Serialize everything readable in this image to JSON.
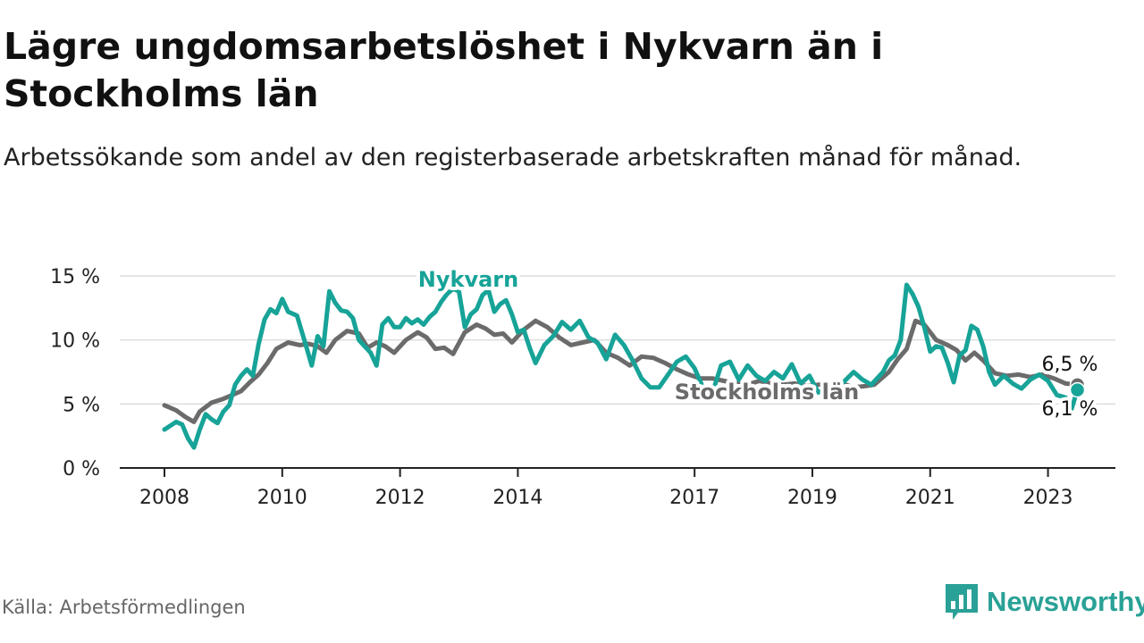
{
  "title": "Lägre ungdomsarbetslöshet i Nykvarn än i Stockholms län",
  "subtitle": "Arbetssökande som andel av den registerbaserade arbetskraften månad för månad.",
  "source": "Källa: Arbetsförmedlingen",
  "brand": {
    "name": "Newsworthy",
    "icon": "bar-chart-logo-icon"
  },
  "colors": {
    "nykvarn": "#17a398",
    "stockholm": "#6b6b6b",
    "grid": "#dddddd",
    "axis": "#222222"
  },
  "chart_data": {
    "type": "line",
    "title": "Lägre ungdomsarbetslöshet i Nykvarn än i Stockholms län",
    "ylim": [
      0,
      15
    ],
    "xlim": [
      2008,
      2023.75
    ],
    "y_ticks": [
      {
        "value": 0,
        "label": "0 %"
      },
      {
        "value": 5,
        "label": "5 %"
      },
      {
        "value": 10,
        "label": "10 %"
      },
      {
        "value": 15,
        "label": "15 %"
      }
    ],
    "x_ticks": [
      {
        "value": 2008,
        "label": "2008"
      },
      {
        "value": 2010,
        "label": "2010"
      },
      {
        "value": 2012,
        "label": "2012"
      },
      {
        "value": 2014,
        "label": "2014"
      },
      {
        "value": 2017,
        "label": "2017"
      },
      {
        "value": 2019,
        "label": "2019"
      },
      {
        "value": 2021,
        "label": "2021"
      },
      {
        "value": 2023,
        "label": "2023"
      }
    ],
    "grid": true,
    "series": [
      {
        "name": "Stockholms län",
        "label": "Stockholms län",
        "end_label": "6,5 %",
        "color": "#6b6b6b",
        "x": [
          2008.0,
          2008.2,
          2008.35,
          2008.5,
          2008.6,
          2008.8,
          2009.0,
          2009.15,
          2009.3,
          2009.45,
          2009.6,
          2009.75,
          2009.9,
          2010.1,
          2010.3,
          2010.45,
          2010.6,
          2010.75,
          2010.9,
          2011.1,
          2011.3,
          2011.45,
          2011.6,
          2011.75,
          2011.9,
          2012.1,
          2012.3,
          2012.45,
          2012.6,
          2012.75,
          2012.9,
          2013.1,
          2013.3,
          2013.45,
          2013.6,
          2013.75,
          2013.9,
          2014.1,
          2014.3,
          2014.5,
          2014.7,
          2014.9,
          2015.1,
          2015.3,
          2015.5,
          2015.7,
          2015.9,
          2016.1,
          2016.3,
          2016.5,
          2016.7,
          2016.9,
          2017.1,
          2017.3,
          2017.5,
          2017.7,
          2017.9,
          2018.1,
          2018.3,
          2018.5,
          2018.7,
          2018.9,
          2019.1,
          2019.3,
          2019.5,
          2019.7,
          2019.9,
          2020.05,
          2020.15,
          2020.3,
          2020.45,
          2020.6,
          2020.75,
          2020.9,
          2021.1,
          2021.3,
          2021.45,
          2021.6,
          2021.75,
          2021.9,
          2022.1,
          2022.3,
          2022.5,
          2022.7,
          2022.9,
          2023.1,
          2023.3,
          2023.5
        ],
        "y": [
          4.9,
          4.5,
          4.0,
          3.6,
          4.4,
          5.1,
          5.4,
          5.7,
          6.0,
          6.7,
          7.3,
          8.2,
          9.3,
          9.8,
          9.6,
          9.7,
          9.5,
          9.0,
          10.0,
          10.7,
          10.5,
          9.4,
          9.8,
          9.5,
          9.0,
          10.0,
          10.6,
          10.2,
          9.3,
          9.4,
          8.9,
          10.6,
          11.2,
          10.9,
          10.4,
          10.5,
          9.8,
          10.8,
          11.5,
          11.0,
          10.2,
          9.6,
          9.8,
          10.0,
          9.0,
          8.6,
          8.0,
          8.7,
          8.6,
          8.2,
          7.7,
          7.3,
          7.0,
          7.0,
          6.8,
          6.6,
          6.5,
          6.8,
          6.6,
          6.5,
          6.6,
          6.4,
          6.5,
          6.5,
          6.6,
          6.3,
          6.4,
          6.5,
          6.9,
          7.5,
          8.5,
          9.3,
          11.5,
          11.2,
          10.0,
          9.6,
          9.2,
          8.4,
          9.0,
          8.4,
          7.4,
          7.2,
          7.3,
          7.1,
          7.3,
          7.0,
          6.6,
          6.5
        ]
      },
      {
        "name": "Nykvarn",
        "label": "Nykvarn",
        "end_label": "6,1 %",
        "color": "#17a398",
        "x": [
          2008.0,
          2008.1,
          2008.2,
          2008.3,
          2008.4,
          2008.5,
          2008.6,
          2008.7,
          2008.8,
          2008.9,
          2009.0,
          2009.1,
          2009.2,
          2009.3,
          2009.4,
          2009.5,
          2009.6,
          2009.7,
          2009.8,
          2009.9,
          2010.0,
          2010.1,
          2010.25,
          2010.4,
          2010.5,
          2010.6,
          2010.7,
          2010.8,
          2010.9,
          2011.0,
          2011.1,
          2011.2,
          2011.3,
          2011.4,
          2011.5,
          2011.6,
          2011.7,
          2011.8,
          2011.9,
          2012.0,
          2012.1,
          2012.2,
          2012.3,
          2012.4,
          2012.5,
          2012.6,
          2012.7,
          2012.8,
          2012.9,
          2013.0,
          2013.1,
          2013.2,
          2013.3,
          2013.4,
          2013.5,
          2013.6,
          2013.7,
          2013.8,
          2013.9,
          2014.0,
          2014.1,
          2014.2,
          2014.3,
          2014.45,
          2014.6,
          2014.75,
          2014.9,
          2015.05,
          2015.2,
          2015.35,
          2015.5,
          2015.65,
          2015.8,
          2015.95,
          2016.1,
          2016.25,
          2016.4,
          2016.55,
          2016.7,
          2016.85,
          2017.0,
          2017.15,
          2017.3,
          2017.45,
          2017.6,
          2017.75,
          2017.9,
          2018.05,
          2018.2,
          2018.35,
          2018.5,
          2018.65,
          2018.8,
          2018.95,
          2019.1,
          2019.25,
          2019.4,
          2019.55,
          2019.7,
          2019.85,
          2020.0,
          2020.1,
          2020.2,
          2020.3,
          2020.4,
          2020.5,
          2020.6,
          2020.7,
          2020.8,
          2020.9,
          2021.0,
          2021.1,
          2021.2,
          2021.3,
          2021.4,
          2021.5,
          2021.6,
          2021.7,
          2021.8,
          2021.9,
          2022.0,
          2022.1,
          2022.25,
          2022.4,
          2022.55,
          2022.7,
          2022.85,
          2023.0,
          2023.15,
          2023.3,
          2023.4,
          2023.5
        ],
        "y": [
          3.0,
          3.3,
          3.6,
          3.4,
          2.3,
          1.6,
          3.0,
          4.2,
          3.8,
          3.5,
          4.4,
          4.9,
          6.5,
          7.2,
          7.7,
          7.2,
          9.7,
          11.6,
          12.4,
          12.1,
          13.2,
          12.2,
          11.9,
          9.6,
          8.0,
          10.3,
          9.5,
          13.8,
          12.9,
          12.3,
          12.2,
          11.7,
          10.0,
          9.5,
          9.0,
          8.0,
          11.2,
          11.7,
          11.0,
          11.0,
          11.7,
          11.3,
          11.6,
          11.2,
          11.8,
          12.2,
          13.0,
          13.6,
          14.0,
          13.8,
          11.0,
          12.0,
          12.4,
          13.5,
          13.9,
          12.2,
          12.8,
          13.1,
          12.0,
          10.6,
          10.8,
          9.4,
          8.2,
          9.6,
          10.3,
          11.4,
          10.8,
          11.5,
          10.2,
          9.8,
          8.5,
          10.4,
          9.6,
          8.4,
          7.0,
          6.3,
          6.3,
          7.3,
          8.3,
          8.7,
          7.8,
          6.2,
          5.8,
          8.0,
          8.3,
          6.9,
          8.0,
          7.2,
          6.8,
          7.5,
          7.0,
          8.1,
          6.6,
          7.2,
          5.9,
          6.2,
          6.0,
          6.8,
          7.5,
          6.9,
          6.5,
          7.0,
          7.5,
          8.4,
          8.8,
          10.0,
          14.3,
          13.6,
          12.6,
          11.0,
          9.1,
          9.5,
          9.4,
          8.2,
          6.7,
          8.8,
          9.2,
          11.1,
          10.8,
          9.5,
          7.5,
          6.5,
          7.2,
          6.6,
          6.2,
          6.9,
          7.3,
          6.8,
          5.7,
          5.5,
          4.6,
          6.1
        ]
      }
    ]
  }
}
